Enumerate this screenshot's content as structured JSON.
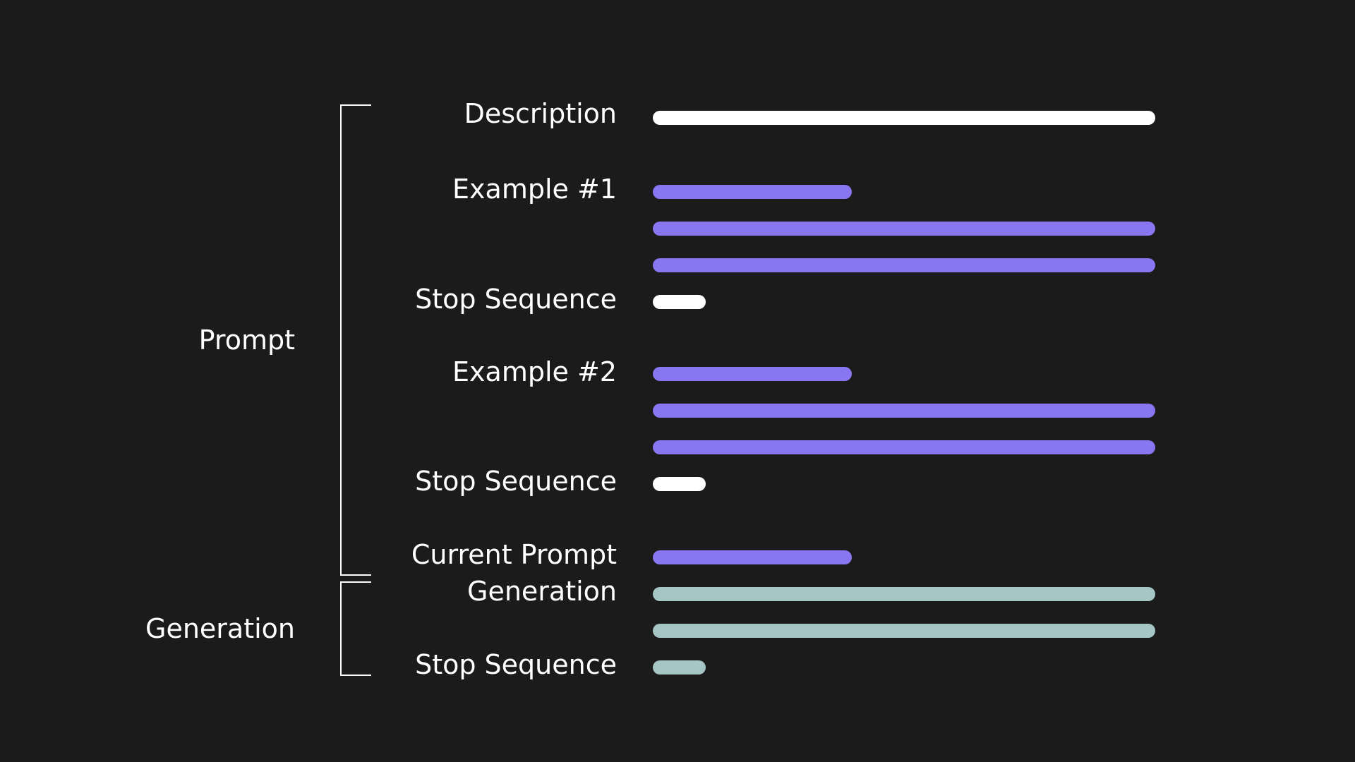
{
  "colors": {
    "background": "#1b1b1b",
    "text": "#ffffff",
    "white": "#ffffff",
    "purple": "#8877f0",
    "teal": "#a6c6c6"
  },
  "groups": {
    "prompt": "Prompt",
    "generation": "Generation"
  },
  "rows": {
    "description": "Description",
    "example1": "Example #1",
    "stop1": "Stop Sequence",
    "example2": "Example #2",
    "stop2": "Stop Sequence",
    "current_prompt": "Current Prompt",
    "generation": "Generation",
    "stop3": "Stop Sequence"
  }
}
